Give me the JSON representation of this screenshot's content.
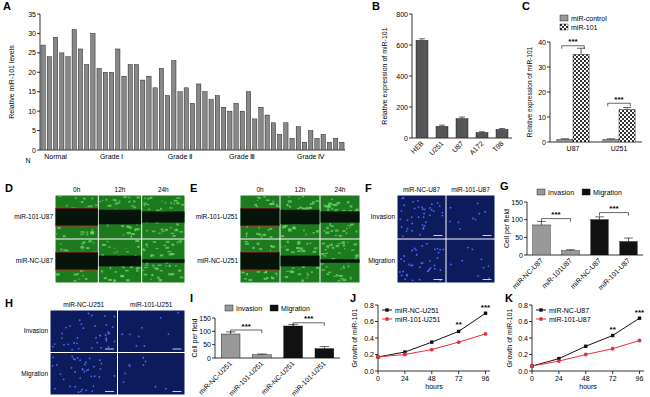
{
  "chart_data": [
    {
      "type": "bar",
      "title": "A",
      "ylabel": "Relative miR-101 levels",
      "xlabel": "N",
      "categories": [
        null,
        null,
        "Normal",
        null,
        null,
        null,
        null,
        null,
        null,
        null,
        null,
        "Grade Ⅰ",
        null,
        null,
        null,
        null,
        null,
        null,
        null,
        null,
        null,
        null,
        "Grade Ⅱ",
        null,
        null,
        null,
        null,
        null,
        null,
        null,
        null,
        null,
        "Grade Ⅲ",
        null,
        null,
        null,
        null,
        null,
        null,
        null,
        null,
        null,
        null,
        "Grade Ⅳ",
        null,
        null,
        null,
        null,
        null
      ],
      "values": [
        27,
        24,
        29,
        25,
        24,
        31,
        26,
        22,
        30,
        21,
        20,
        20,
        26,
        19,
        22,
        22,
        18,
        19,
        16,
        21,
        14,
        23,
        15,
        16,
        12,
        17,
        15,
        13,
        14,
        11,
        10,
        12,
        10,
        15,
        8,
        11,
        9,
        7,
        4,
        7,
        3,
        6,
        2,
        5,
        3,
        4,
        2,
        3,
        2
      ],
      "color": "#888888",
      "ylim": [
        0,
        35
      ],
      "yticks": [
        0,
        5,
        10,
        15,
        20,
        25,
        30,
        35
      ]
    },
    {
      "type": "bar",
      "title": "B",
      "ylabel": "Relative expression of miR-101",
      "categories": [
        "HEB",
        "U251",
        "U87",
        "A172",
        "T98"
      ],
      "values": [
        630,
        75,
        125,
        35,
        55
      ],
      "errors": [
        10,
        8,
        10,
        5,
        6
      ],
      "color": "#555555",
      "ylim": [
        0,
        800
      ],
      "yticks": [
        0,
        200,
        400,
        600,
        800
      ]
    },
    {
      "type": "bar",
      "title": "C",
      "ylabel": "Relative expression of miR-101",
      "categories": [
        "U87",
        "U251"
      ],
      "series": [
        {
          "name": "miR-control",
          "color": "#999999",
          "values": [
            1,
            1
          ],
          "errors": [
            0.3,
            0.3
          ]
        },
        {
          "name": "miR-101",
          "color": "#333333",
          "values": [
            35,
            13
          ],
          "errors": [
            2.5,
            0.8
          ]
        }
      ],
      "ylim": [
        0,
        40
      ],
      "yticks": [
        0,
        10,
        20,
        30,
        40
      ],
      "legend": "top",
      "annotations": [
        {
          "text": "***",
          "x": 0,
          "y": 38.5
        },
        {
          "text": "***",
          "x": 1,
          "y": 15.5
        }
      ]
    },
    {
      "type": "bar",
      "title": "G",
      "ylabel": "Cell per field",
      "categories": [
        "miR-NC-U87",
        "miR-101U87",
        "miR-NC-U87",
        "miR-101-U87"
      ],
      "series": [
        {
          "name": "Invasion",
          "color": "#999999",
          "values": [
            85,
            12,
            null,
            null
          ],
          "errors": [
            10,
            3,
            null,
            null
          ]
        },
        {
          "name": "Migration",
          "color": "#111111",
          "values": [
            null,
            null,
            100,
            38
          ],
          "errors": [
            null,
            null,
            8,
            10
          ]
        }
      ],
      "ylim": [
        0,
        150
      ],
      "yticks": [
        0,
        50,
        100,
        150
      ],
      "legend": "top",
      "annotations": [
        {
          "text": "***",
          "x": 0.5,
          "y": 103
        },
        {
          "text": "***",
          "x": 2.5,
          "y": 120
        }
      ]
    },
    {
      "type": "bar",
      "title": "I",
      "ylabel": "Cell per field",
      "categories": [
        "miR-NC-U251",
        "miR-101-U251",
        "miR-NC-U251",
        "miR-101-U251"
      ],
      "series": [
        {
          "name": "Invasion",
          "color": "#999999",
          "values": [
            90,
            12,
            null,
            null
          ],
          "errors": [
            8,
            3,
            null,
            null
          ]
        },
        {
          "name": "Migration",
          "color": "#111111",
          "values": [
            null,
            null,
            120,
            35
          ],
          "errors": [
            null,
            null,
            6,
            8
          ]
        }
      ],
      "ylim": [
        0,
        150
      ],
      "yticks": [
        0,
        50,
        100,
        150
      ],
      "legend": "top",
      "annotations": [
        {
          "text": "***",
          "x": 0.5,
          "y": 105
        },
        {
          "text": "***",
          "x": 2.5,
          "y": 132
        }
      ]
    },
    {
      "type": "line",
      "title": "J",
      "ylabel": "Growth of miR-101",
      "xlabel": "hours",
      "x": [
        0,
        24,
        48,
        72,
        96
      ],
      "xlim": [
        0,
        100
      ],
      "xticks": [
        0,
        24,
        48,
        72,
        96
      ],
      "ylim": [
        0,
        0.8
      ],
      "yticks": [
        {
          "value": 0,
          "label": "0.0"
        },
        {
          "value": 0.2,
          "label": "0.2"
        },
        {
          "value": 0.4,
          "label": "0.4"
        },
        {
          "value": 0.6,
          "label": "0.6"
        },
        {
          "value": 0.8,
          "label": "0.8"
        }
      ],
      "series": [
        {
          "name": "miR-NC-U251",
          "color": "#111111",
          "marker": "square",
          "values": [
            0.17,
            0.23,
            0.35,
            0.48,
            0.7
          ]
        },
        {
          "name": "miR-101-U251",
          "color": "#e8303a",
          "marker": "circle",
          "values": [
            0.17,
            0.2,
            0.26,
            0.35,
            0.45
          ]
        }
      ],
      "legend": "top-left",
      "annotations": [
        {
          "text": "**",
          "x": 72,
          "y": 0.53
        },
        {
          "text": "***",
          "x": 96,
          "y": 0.74
        }
      ]
    },
    {
      "type": "line",
      "title": "K",
      "ylabel": "Growth of miR-101",
      "xlabel": "hours",
      "x": [
        0,
        24,
        48,
        72,
        96
      ],
      "xlim": [
        0,
        100
      ],
      "xticks": [
        0,
        24,
        48,
        72,
        96
      ],
      "ylim": [
        0,
        0.8
      ],
      "yticks": [
        {
          "value": 0,
          "label": "0.0"
        },
        {
          "value": 0.2,
          "label": "0.2"
        },
        {
          "value": 0.4,
          "label": "0.4"
        },
        {
          "value": 0.6,
          "label": "0.6"
        },
        {
          "value": 0.8,
          "label": "0.8"
        }
      ],
      "series": [
        {
          "name": "miR-NC-U87",
          "color": "#111111",
          "marker": "square",
          "values": [
            0.06,
            0.15,
            0.3,
            0.43,
            0.64
          ]
        },
        {
          "name": "miR-101-U87",
          "color": "#e8303a",
          "marker": "circle",
          "values": [
            0.06,
            0.12,
            0.2,
            0.27,
            0.37
          ]
        }
      ],
      "legend": "top-left",
      "annotations": [
        {
          "text": "**",
          "x": 72,
          "y": 0.47
        },
        {
          "text": "***",
          "x": 96,
          "y": 0.68
        }
      ]
    }
  ],
  "image_panels": [
    {
      "type": "wound",
      "title": "D",
      "columns": [
        "0h",
        "12h",
        "24h"
      ],
      "rows": [
        "miR-101-U87",
        "miR-NC-U87"
      ],
      "color": "#1e7a1e"
    },
    {
      "type": "wound",
      "title": "E",
      "columns": [
        "0h",
        "12h",
        "24h"
      ],
      "rows": [
        "miR-101-U251",
        "miR-NC-U251"
      ],
      "color": "#1e7a1e"
    },
    {
      "type": "fluorescence",
      "title": "F",
      "columns": [
        "miR-NC-U87",
        "miR-101-U87"
      ],
      "rows": [
        "Invasion",
        "Migration"
      ],
      "color": "#0d1a5c"
    },
    {
      "type": "fluorescence",
      "title": "H",
      "columns": [
        "miR-NC-U251",
        "miR-101-U251"
      ],
      "rows": [
        "Invasion",
        "Migration"
      ],
      "color": "#0d1a5c"
    }
  ]
}
